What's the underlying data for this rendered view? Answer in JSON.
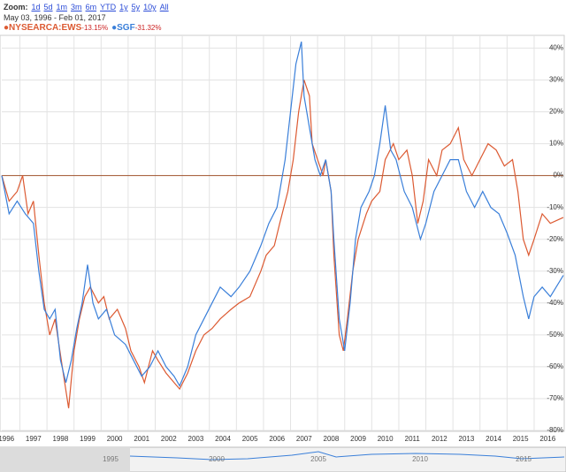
{
  "zoom": {
    "label": "Zoom:",
    "options": [
      "1d",
      "5d",
      "1m",
      "3m",
      "6m",
      "YTD",
      "1y",
      "5y",
      "10y",
      "All"
    ]
  },
  "date_range": "May 03, 1996 - Feb 01, 2017",
  "navigator": {
    "labels": [
      "1995",
      "2000",
      "2005",
      "2010",
      "2015"
    ]
  },
  "chart_data": {
    "type": "line",
    "xlim": [
      1996.33,
      2017.08
    ],
    "xticks": [
      {
        "value": 1996,
        "label": "1996"
      },
      {
        "value": 1997,
        "label": "1997"
      },
      {
        "value": 1998,
        "label": "1998"
      },
      {
        "value": 1999,
        "label": "1999"
      },
      {
        "value": 2000,
        "label": "2000"
      },
      {
        "value": 2001,
        "label": "2001"
      },
      {
        "value": 2002,
        "label": "2002"
      },
      {
        "value": 2003,
        "label": "2003"
      },
      {
        "value": 2004,
        "label": "2004"
      },
      {
        "value": 2005,
        "label": "2005"
      },
      {
        "value": 2006,
        "label": "2006"
      },
      {
        "value": 2007,
        "label": "2007"
      },
      {
        "value": 2008,
        "label": "2008"
      },
      {
        "value": 2009,
        "label": "2009"
      },
      {
        "value": 2010,
        "label": "2010"
      },
      {
        "value": 2011,
        "label": "2011"
      },
      {
        "value": 2012,
        "label": "2012"
      },
      {
        "value": 2013,
        "label": "2013"
      },
      {
        "value": 2014,
        "label": "2014"
      },
      {
        "value": 2015,
        "label": "2015"
      },
      {
        "value": 2016,
        "label": "2016"
      }
    ],
    "ylim": [
      -80,
      44
    ],
    "yticks": [
      {
        "value": 40,
        "label": "40%"
      },
      {
        "value": 30,
        "label": "30%"
      },
      {
        "value": 20,
        "label": "20%"
      },
      {
        "value": 10,
        "label": "10%"
      },
      {
        "value": 0,
        "label": "0%"
      },
      {
        "value": -10,
        "label": "-10%"
      },
      {
        "value": -20,
        "label": "-20%"
      },
      {
        "value": -30,
        "label": "-30%"
      },
      {
        "value": -40,
        "label": "-40%"
      },
      {
        "value": -50,
        "label": "-50%"
      },
      {
        "value": -60,
        "label": "-60%"
      },
      {
        "value": -70,
        "label": "-70%"
      },
      {
        "value": -80,
        "label": "-80%"
      }
    ],
    "grid": true,
    "series": [
      {
        "name": "NYSEARCA:EWS",
        "change_label": "-13.15%",
        "color": "#dc5a32",
        "x": [
          1996.33,
          1996.6,
          1996.9,
          1997.1,
          1997.3,
          1997.5,
          1997.7,
          1997.9,
          1998.1,
          1998.3,
          1998.6,
          1998.8,
          1999.0,
          1999.2,
          1999.4,
          1999.6,
          1999.9,
          2000.1,
          2000.3,
          2000.6,
          2000.9,
          2001.1,
          2001.4,
          2001.6,
          2001.9,
          2002.1,
          2002.4,
          2002.7,
          2002.9,
          2003.2,
          2003.5,
          2003.8,
          2004.1,
          2004.4,
          2004.8,
          2005.1,
          2005.5,
          2005.9,
          2006.1,
          2006.4,
          2006.6,
          2006.9,
          2007.1,
          2007.3,
          2007.5,
          2007.7,
          2007.8,
          2008.0,
          2008.2,
          2008.3,
          2008.5,
          2008.6,
          2008.8,
          2008.95,
          2009.1,
          2009.3,
          2009.5,
          2009.8,
          2010.0,
          2010.3,
          2010.5,
          2010.8,
          2011.0,
          2011.3,
          2011.5,
          2011.7,
          2011.9,
          2012.1,
          2012.4,
          2012.6,
          2012.9,
          2013.2,
          2013.4,
          2013.7,
          2014.0,
          2014.3,
          2014.6,
          2014.9,
          2015.2,
          2015.4,
          2015.6,
          2015.8,
          2016.0,
          2016.3,
          2016.6,
          2017.08
        ],
        "values": [
          0,
          -8,
          -5,
          0,
          -12,
          -8,
          -25,
          -40,
          -50,
          -45,
          -62,
          -73,
          -55,
          -45,
          -38,
          -35,
          -40,
          -38,
          -45,
          -42,
          -48,
          -55,
          -60,
          -65,
          -55,
          -58,
          -62,
          -65,
          -67,
          -62,
          -55,
          -50,
          -48,
          -45,
          -42,
          -40,
          -38,
          -30,
          -25,
          -22,
          -15,
          -5,
          5,
          20,
          30,
          25,
          10,
          5,
          0,
          5,
          -5,
          -25,
          -50,
          -55,
          -45,
          -30,
          -20,
          -12,
          -8,
          -5,
          5,
          10,
          5,
          8,
          0,
          -15,
          -8,
          5,
          0,
          8,
          10,
          15,
          5,
          0,
          5,
          10,
          8,
          3,
          5,
          -5,
          -20,
          -25,
          -20,
          -12,
          -15,
          -13.15
        ]
      },
      {
        "name": "SGF",
        "change_label": "-31.32%",
        "color": "#3a7fd9",
        "x": [
          1996.33,
          1996.6,
          1996.9,
          1997.2,
          1997.5,
          1997.7,
          1997.9,
          1998.1,
          1998.3,
          1998.5,
          1998.7,
          1998.9,
          1999.1,
          1999.3,
          1999.5,
          1999.7,
          1999.9,
          2000.2,
          2000.5,
          2000.9,
          2001.2,
          2001.5,
          2001.8,
          2002.1,
          2002.4,
          2002.7,
          2002.9,
          2003.2,
          2003.5,
          2003.8,
          2004.1,
          2004.4,
          2004.8,
          2005.1,
          2005.5,
          2005.9,
          2006.2,
          2006.5,
          2006.8,
          2007.0,
          2007.2,
          2007.4,
          2007.5,
          2007.7,
          2007.9,
          2008.1,
          2008.3,
          2008.5,
          2008.6,
          2008.8,
          2009.0,
          2009.2,
          2009.4,
          2009.6,
          2009.9,
          2010.1,
          2010.3,
          2010.5,
          2010.7,
          2010.9,
          2011.2,
          2011.5,
          2011.8,
          2012.0,
          2012.3,
          2012.6,
          2012.9,
          2013.2,
          2013.5,
          2013.8,
          2014.1,
          2014.4,
          2014.7,
          2015.0,
          2015.3,
          2015.6,
          2015.8,
          2016.0,
          2016.3,
          2016.6,
          2017.08
        ],
        "values": [
          0,
          -12,
          -8,
          -12,
          -15,
          -30,
          -42,
          -45,
          -42,
          -58,
          -65,
          -58,
          -48,
          -40,
          -28,
          -40,
          -45,
          -42,
          -50,
          -53,
          -58,
          -63,
          -60,
          -55,
          -60,
          -63,
          -66,
          -60,
          -50,
          -45,
          -40,
          -35,
          -38,
          -35,
          -30,
          -22,
          -15,
          -10,
          5,
          20,
          35,
          42,
          25,
          15,
          5,
          0,
          5,
          -5,
          -20,
          -45,
          -55,
          -40,
          -20,
          -10,
          -5,
          0,
          10,
          22,
          8,
          5,
          -5,
          -10,
          -20,
          -15,
          -5,
          0,
          5,
          5,
          -5,
          -10,
          -5,
          -10,
          -12,
          -18,
          -25,
          -38,
          -45,
          -38,
          -35,
          -38,
          -31.32
        ]
      }
    ]
  }
}
